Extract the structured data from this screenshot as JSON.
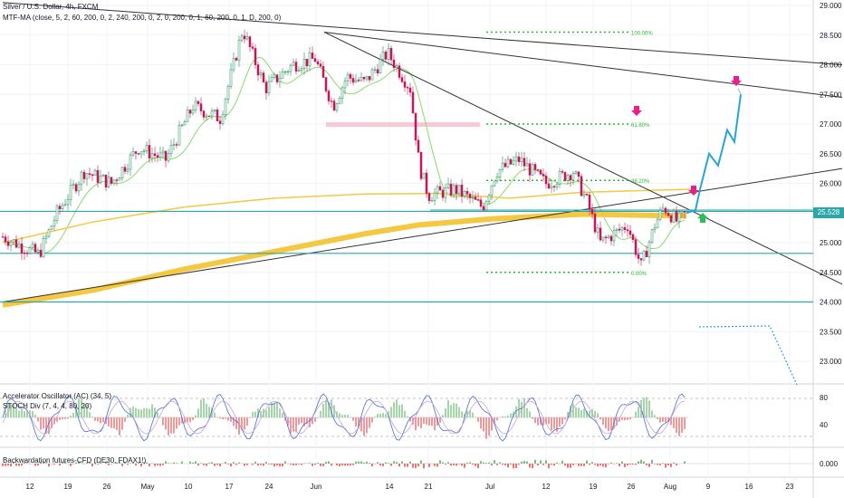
{
  "main": {
    "title": "Silver / U.S. Dollar, 4h, FXCM",
    "indicator": "MTF-MA (close, 5, 2, 60, 200, 0, 2, 240, 200, 0, 2, 0, 200, 0, 1, 60, 200, 0, 1, D, 200, 0)",
    "last_price": "25.528"
  },
  "osc": {
    "line1": "Accelerator Oscillator (AC) (34, 5)",
    "line2": "STOCH Div (7, 4, 4, 80, 20)"
  },
  "bw": {
    "line1": "Backwardation futures-CFD (DE30, FDAX1!)"
  },
  "chart_data": {
    "type": "candlestick",
    "symbol": "XAGUSD",
    "timeframe": "4h",
    "y_axis_ticks": [
      "29.000",
      "28.500",
      "28.000",
      "27.500",
      "27.000",
      "26.500",
      "26.000",
      "25.500",
      "25.000",
      "24.500",
      "24.000",
      "23.500",
      "23.000"
    ],
    "ylim": [
      22.7,
      29.1
    ],
    "x_axis_ticks": [
      "12",
      "19",
      "26",
      "May",
      "10",
      "17",
      "24",
      "Jun",
      "14",
      "21",
      "Jul",
      "12",
      "19",
      "26",
      "Aug",
      "9",
      "16",
      "23"
    ],
    "fib_levels": [
      {
        "label": "100.00%",
        "price": 28.55
      },
      {
        "label": "61.80%",
        "price": 27.0
      },
      {
        "label": "38.20%",
        "price": 26.05
      },
      {
        "label": "0.00%",
        "price": 24.5
      }
    ],
    "horizontal_levels": [
      25.528,
      24.82,
      24.0
    ],
    "close_path_anchors": [
      {
        "t": 0,
        "p": 25.1
      },
      {
        "t": 40,
        "p": 24.8
      },
      {
        "t": 60,
        "p": 25.5
      },
      {
        "t": 90,
        "p": 26.2
      },
      {
        "t": 120,
        "p": 26.0
      },
      {
        "t": 150,
        "p": 26.6
      },
      {
        "t": 180,
        "p": 26.4
      },
      {
        "t": 210,
        "p": 27.3
      },
      {
        "t": 240,
        "p": 27.1
      },
      {
        "t": 265,
        "p": 28.6
      },
      {
        "t": 290,
        "p": 27.6
      },
      {
        "t": 320,
        "p": 28.0
      },
      {
        "t": 345,
        "p": 28.1
      },
      {
        "t": 365,
        "p": 27.3
      },
      {
        "t": 380,
        "p": 27.8
      },
      {
        "t": 400,
        "p": 27.7
      },
      {
        "t": 425,
        "p": 28.2
      },
      {
        "t": 450,
        "p": 27.6
      },
      {
        "t": 460,
        "p": 26.3
      },
      {
        "t": 470,
        "p": 25.8
      },
      {
        "t": 500,
        "p": 25.9
      },
      {
        "t": 530,
        "p": 25.6
      },
      {
        "t": 545,
        "p": 26.2
      },
      {
        "t": 570,
        "p": 26.4
      },
      {
        "t": 600,
        "p": 26.0
      },
      {
        "t": 630,
        "p": 26.2
      },
      {
        "t": 645,
        "p": 25.7
      },
      {
        "t": 660,
        "p": 25.0
      },
      {
        "t": 690,
        "p": 25.3
      },
      {
        "t": 705,
        "p": 24.6
      },
      {
        "t": 720,
        "p": 25.3
      },
      {
        "t": 730,
        "p": 25.6
      },
      {
        "t": 745,
        "p": 25.35
      },
      {
        "t": 755,
        "p": 25.5
      }
    ],
    "projection_path": [
      {
        "t": 755,
        "p": 25.5
      },
      {
        "t": 765,
        "p": 25.55
      },
      {
        "t": 770,
        "p": 25.9
      },
      {
        "t": 780,
        "p": 26.5
      },
      {
        "t": 790,
        "p": 26.3
      },
      {
        "t": 800,
        "p": 26.9
      },
      {
        "t": 808,
        "p": 26.7
      },
      {
        "t": 815,
        "p": 27.5
      }
    ],
    "annotations": [
      "100.00%",
      "61.80%",
      "38.20%",
      "0.00%"
    ]
  },
  "osc_axis": [
    "80",
    "40"
  ],
  "bw_axis": [
    "0.000"
  ],
  "colors": {
    "bull": "#26a69a",
    "bear": "#ef5350",
    "candle_body_up": "#ffffff",
    "ma_green": "#8bd96b",
    "ma_gold": "#f5c842",
    "level": "#2aa7a9",
    "fib": "#2db82d",
    "projection": "#29a3d9",
    "arrow_down": "#e91e8c",
    "arrow_up": "#2dbd5a"
  }
}
